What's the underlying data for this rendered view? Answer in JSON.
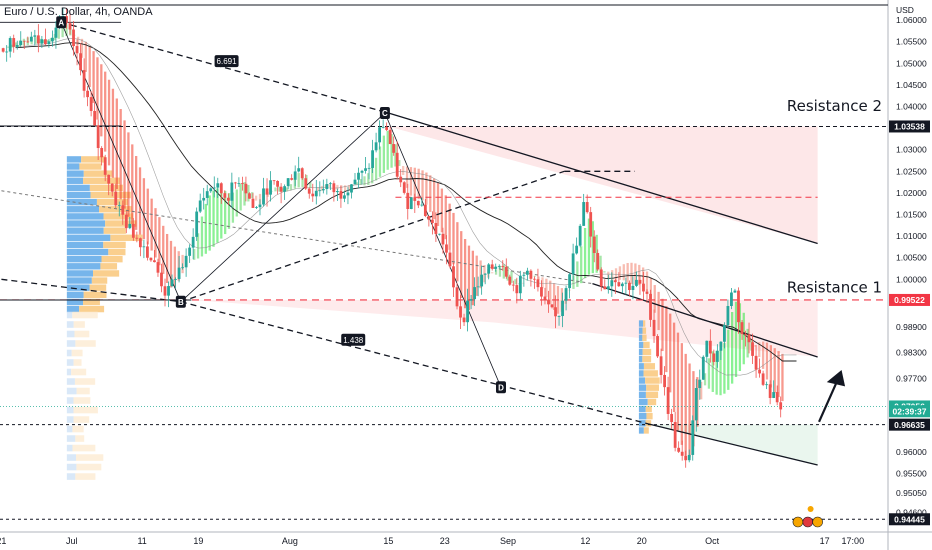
{
  "chart_data": {
    "type": "candlestick",
    "title": "Euro / U.S. Dollar, 4h, OANDA",
    "currency": "USD",
    "ylim": [
      0.9415,
      1.0635
    ],
    "y_ticks": [
      "1.06000",
      "1.05500",
      "1.05000",
      "1.04500",
      "1.04000",
      "1.03500",
      "1.03000",
      "1.02500",
      "1.02000",
      "1.01500",
      "1.01000",
      "1.00500",
      "1.00000",
      "0.99500",
      "0.98900",
      "0.98300",
      "0.97700",
      "0.97100",
      "0.96600",
      "0.96000",
      "0.95500",
      "0.95050",
      "0.94600"
    ],
    "y_tick_values": [
      1.06,
      1.055,
      1.05,
      1.045,
      1.04,
      1.035,
      1.03,
      1.025,
      1.02,
      1.015,
      1.01,
      1.005,
      1.0,
      0.995,
      0.989,
      0.983,
      0.977,
      0.971,
      0.966,
      0.96,
      0.955,
      0.9505,
      0.946
    ],
    "x_ticks": [
      {
        "label": "21",
        "day": 0
      },
      {
        "label": "Jul",
        "day": 10
      },
      {
        "label": "11",
        "day": 20
      },
      {
        "label": "19",
        "day": 28
      },
      {
        "label": "Aug",
        "day": 41
      },
      {
        "label": "15",
        "day": 55
      },
      {
        "label": "23",
        "day": 63
      },
      {
        "label": "Sep",
        "day": 72
      },
      {
        "label": "12",
        "day": 83
      },
      {
        "label": "20",
        "day": 91
      },
      {
        "label": "Oct",
        "day": 101
      },
      {
        "label": "17",
        "day": 117
      },
      {
        "label": "17:00",
        "day": 121
      }
    ],
    "x_range_days": [
      -0.2,
      126
    ],
    "last_candle_day": 111,
    "price_path": [
      [
        0,
        1.0535
      ],
      [
        2,
        1.0555
      ],
      [
        4,
        1.0565
      ],
      [
        5.5,
        1.0548
      ],
      [
        7,
        1.0568
      ],
      [
        8.5,
        1.0605
      ],
      [
        10,
        1.0555
      ],
      [
        12,
        1.0435
      ],
      [
        14,
        1.029
      ],
      [
        16,
        1.019
      ],
      [
        18,
        1.012
      ],
      [
        20,
        1.0085
      ],
      [
        22,
        1.0025
      ],
      [
        23.5,
        0.996
      ],
      [
        25,
        1.002
      ],
      [
        26.5,
        1.0045
      ],
      [
        28,
        1.0175
      ],
      [
        30,
        1.022
      ],
      [
        32,
        1.019
      ],
      [
        34,
        1.024
      ],
      [
        36,
        1.0155
      ],
      [
        38,
        1.022
      ],
      [
        40,
        1.0205
      ],
      [
        42,
        1.0265
      ],
      [
        44,
        1.0195
      ],
      [
        46,
        1.022
      ],
      [
        48,
        1.0195
      ],
      [
        50,
        1.023
      ],
      [
        52,
        1.025
      ],
      [
        53.5,
        1.0335
      ],
      [
        54.5,
        1.0365
      ],
      [
        56,
        1.026
      ],
      [
        57.5,
        1.0175
      ],
      [
        59,
        1.0195
      ],
      [
        61,
        1.013
      ],
      [
        63,
        1.008
      ],
      [
        64.5,
        0.9955
      ],
      [
        65.5,
        0.9905
      ],
      [
        67,
        0.9975
      ],
      [
        69,
        1.0015
      ],
      [
        71,
        1.0045
      ],
      [
        73,
        0.9975
      ],
      [
        75,
        1.0025
      ],
      [
        77,
        0.9945
      ],
      [
        79,
        0.9905
      ],
      [
        80.5,
        1.001
      ],
      [
        82,
        1.009
      ],
      [
        83,
        1.0195
      ],
      [
        84,
        1.0075
      ],
      [
        85.5,
        0.998
      ],
      [
        87,
        1.0005
      ],
      [
        89,
        0.9985
      ],
      [
        90.5,
        0.999
      ],
      [
        92,
        0.9945
      ],
      [
        93,
        0.985
      ],
      [
        94.5,
        0.972
      ],
      [
        96,
        0.96
      ],
      [
        97.5,
        0.9565
      ],
      [
        98.5,
        0.971
      ],
      [
        100,
        0.9855
      ],
      [
        101.5,
        0.9815
      ],
      [
        103,
        0.991
      ],
      [
        104,
        1.0
      ],
      [
        105,
        0.988
      ],
      [
        106.5,
        0.985
      ],
      [
        108,
        0.976
      ],
      [
        109.5,
        0.973
      ],
      [
        111,
        0.9706
      ]
    ],
    "annotations": {
      "pattern_points": [
        {
          "label": "A",
          "day": 8.5,
          "price": 1.0595
        },
        {
          "label": "B",
          "day": 25.5,
          "price": 0.9948
        },
        {
          "label": "C",
          "day": 54.5,
          "price": 1.0385
        },
        {
          "label": "D",
          "day": 71,
          "price": 0.975
        }
      ],
      "ratio_labels": [
        {
          "text": "6.691",
          "day": 32,
          "price": 1.0505
        },
        {
          "text": "1.438",
          "day": 50,
          "price": 0.986
        }
      ],
      "resistance_labels": [
        {
          "text": "Resistance 2",
          "price": 1.039
        },
        {
          "text": "Resistance 1",
          "price": 0.997
        }
      ],
      "price_labels": [
        {
          "text": "1.03538",
          "price": 1.03538,
          "color": "#131722"
        },
        {
          "text": "0.99522",
          "price": 0.99522,
          "color": "#f23645"
        },
        {
          "text": "0.97056",
          "price": 0.97056,
          "color": "#22ab94"
        },
        {
          "text": "02:39:37",
          "price": 0.96945,
          "color": "#22ab94"
        },
        {
          "text": "0.96635",
          "price": 0.96635,
          "color": "#131722"
        },
        {
          "text": "0.94445",
          "price": 0.94445,
          "color": "#131722"
        }
      ],
      "colors": {
        "bull": "#26a69a",
        "bear": "#ef5350",
        "resistance_line": "#f23645",
        "zone_red": "#fde4e6",
        "zone_green": "#e8f5ec",
        "volume_blue": "#5ea8e8",
        "volume_yellow": "#f9c77a"
      }
    }
  }
}
